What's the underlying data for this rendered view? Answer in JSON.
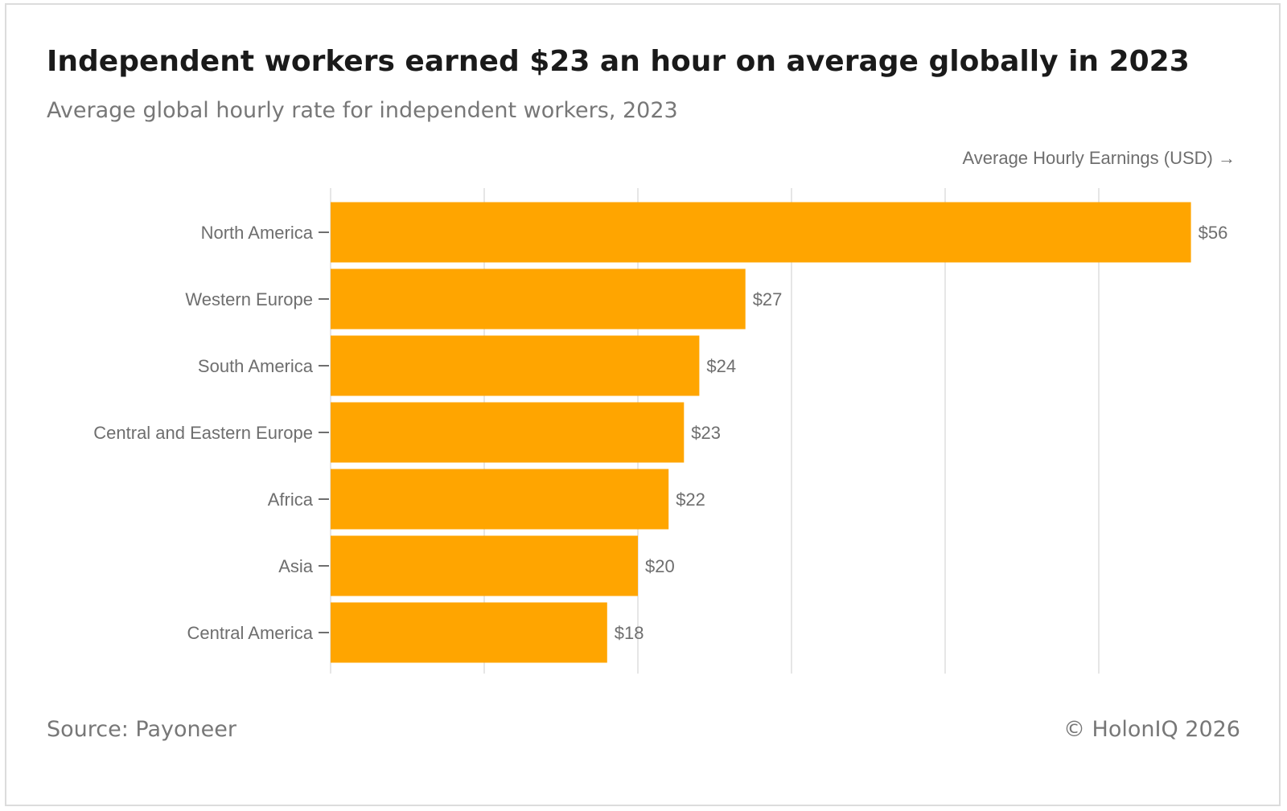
{
  "header": {
    "title": "Independent workers earned $23 an hour on average globally in 2023",
    "subtitle": "Average global hourly rate for independent workers, 2023"
  },
  "footer": {
    "source": "Source: Payoneer",
    "copyright": "© HolonIQ 2026"
  },
  "colors": {
    "bar": "#FFA500",
    "grid": "#e6e6e6",
    "tick": "#6e6e6e"
  },
  "chart_data": {
    "type": "bar",
    "orientation": "horizontal",
    "title": "Independent workers earned $23 an hour on average globally in 2023",
    "subtitle": "Average global hourly rate for independent workers, 2023",
    "xlabel": "Average Hourly Earnings (USD) →",
    "ylabel": "",
    "xlim": [
      0,
      60
    ],
    "grid": true,
    "gridlines_at": [
      0,
      10,
      20,
      30,
      40,
      50
    ],
    "categories": [
      "North America",
      "Western Europe",
      "South America",
      "Central and Eastern Europe",
      "Africa",
      "Asia",
      "Central America"
    ],
    "values": [
      56,
      27,
      24,
      23,
      22,
      20,
      18
    ],
    "value_labels": [
      "$56",
      "$27",
      "$24",
      "$23",
      "$22",
      "$20",
      "$18"
    ]
  }
}
